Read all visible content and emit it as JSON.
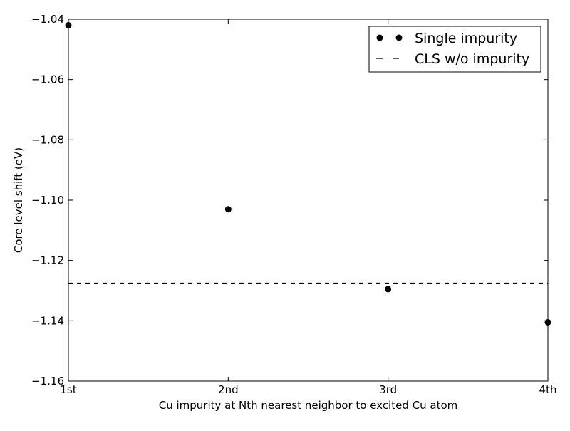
{
  "chart_data": {
    "type": "scatter",
    "title": "",
    "xlabel": "Cu impurity at Nth nearest neighbor to excited Cu atom",
    "ylabel": "Core level shift (eV)",
    "categories": [
      "1st",
      "2nd",
      "3rd",
      "4th"
    ],
    "xlim": [
      0,
      3
    ],
    "ylim": [
      -1.16,
      -1.04
    ],
    "y_ticks": [
      -1.16,
      -1.14,
      -1.12,
      -1.1,
      -1.08,
      -1.06,
      -1.04
    ],
    "y_tick_labels": [
      "−1.16",
      "−1.14",
      "−1.12",
      "−1.10",
      "−1.08",
      "−1.06",
      "−1.04"
    ],
    "grid": false,
    "legend_position": "top-right",
    "series": [
      {
        "name": "Single impurity",
        "marker": "circle",
        "color": "#000000",
        "x": [
          0,
          1,
          2,
          3
        ],
        "values": [
          -1.042,
          -1.103,
          -1.1295,
          -1.1405
        ]
      }
    ],
    "reference_lines": [
      {
        "name": "CLS w/o impurity",
        "style": "dashed",
        "color": "#000000",
        "y": -1.1275
      }
    ]
  }
}
